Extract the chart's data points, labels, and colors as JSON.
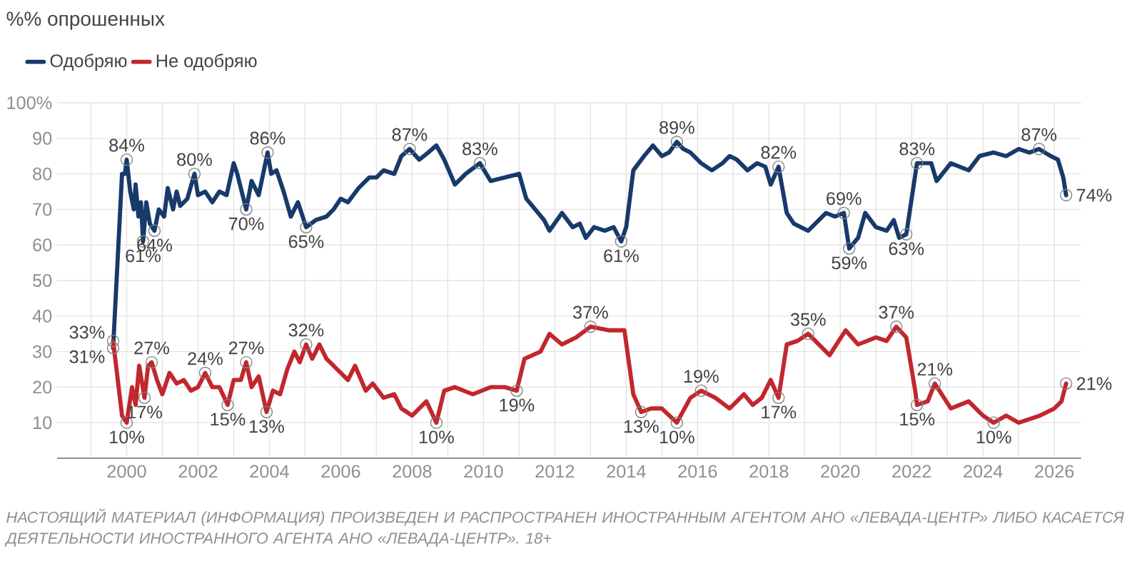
{
  "chart_data": {
    "type": "line",
    "ylabel": "%% опрошенных",
    "legend": "top left",
    "grid": true,
    "marker": "none",
    "line_style": "solid",
    "xlim": [
      1998.05,
      2026.75
    ],
    "ylim": [
      0,
      100
    ],
    "xticks": [
      {
        "value": 1999,
        "label": null
      },
      2000,
      {
        "value": 2001,
        "label": null
      },
      2002,
      {
        "value": 2003,
        "label": null
      },
      2004,
      {
        "value": 2005,
        "label": null
      },
      2006,
      {
        "value": 2007,
        "label": null
      },
      2008,
      {
        "value": 2009,
        "label": null
      },
      2010,
      {
        "value": 2011,
        "label": null
      },
      2012,
      {
        "value": 2013,
        "label": null
      },
      2014,
      {
        "value": 2015,
        "label": null
      },
      2016,
      {
        "value": 2017,
        "label": null
      },
      2018,
      {
        "value": 2019,
        "label": null
      },
      2020,
      {
        "value": 2021,
        "label": null
      },
      2022,
      {
        "value": 2023,
        "label": null
      },
      2024,
      {
        "value": 2025,
        "label": null
      },
      2026
    ],
    "yticks": [
      10,
      20,
      30,
      40,
      50,
      60,
      70,
      80,
      90,
      {
        "value": 100,
        "label": "100%"
      }
    ],
    "series": [
      {
        "name": "Одобряю",
        "color": "#173a6b",
        "x": [
          1999.62,
          1999.87,
          1999.95,
          2000.0,
          2000.1,
          2000.2,
          2000.25,
          2000.33,
          2000.4,
          2000.46,
          2000.55,
          2000.65,
          2000.78,
          2000.9,
          2001.05,
          2001.15,
          2001.3,
          2001.4,
          2001.5,
          2001.7,
          2001.9,
          2002.0,
          2002.2,
          2002.4,
          2002.6,
          2002.8,
          2003.0,
          2003.1,
          2003.2,
          2003.35,
          2003.5,
          2003.7,
          2003.95,
          2004.05,
          2004.2,
          2004.4,
          2004.6,
          2004.8,
          2005.03,
          2005.3,
          2005.6,
          2005.8,
          2006.0,
          2006.2,
          2006.5,
          2006.8,
          2007.0,
          2007.2,
          2007.5,
          2007.7,
          2007.93,
          2008.2,
          2008.45,
          2008.68,
          2008.9,
          2009.2,
          2009.5,
          2009.9,
          2010.2,
          2010.6,
          2011.0,
          2011.2,
          2011.45,
          2011.7,
          2011.85,
          2012.2,
          2012.5,
          2012.7,
          2012.87,
          2013.1,
          2013.4,
          2013.65,
          2013.86,
          2014.0,
          2014.2,
          2014.5,
          2014.75,
          2015.0,
          2015.2,
          2015.42,
          2015.6,
          2015.8,
          2016.1,
          2016.4,
          2016.7,
          2016.9,
          2017.1,
          2017.4,
          2017.67,
          2017.9,
          2018.05,
          2018.27,
          2018.5,
          2018.7,
          2019.1,
          2019.4,
          2019.6,
          2019.85,
          2020.1,
          2020.25,
          2020.5,
          2020.7,
          2021.0,
          2021.3,
          2021.5,
          2021.65,
          2021.85,
          2022.15,
          2022.55,
          2022.7,
          2023.1,
          2023.6,
          2023.9,
          2024.3,
          2024.65,
          2025.0,
          2025.3,
          2025.57,
          2025.9,
          2026.1,
          2026.25,
          2026.33
        ],
        "values": [
          31,
          80,
          80,
          84,
          75,
          70,
          77,
          68,
          72,
          61,
          72,
          66,
          64,
          70,
          68,
          76,
          70,
          75,
          71,
          73,
          80,
          74,
          75,
          72,
          75,
          74,
          83,
          80,
          76,
          70,
          78,
          74,
          86,
          80,
          81,
          75,
          68,
          72,
          65,
          67,
          68,
          70,
          73,
          72,
          76,
          79,
          79,
          81,
          80,
          85,
          87,
          84,
          86,
          88,
          84,
          77,
          80,
          83,
          78,
          79,
          80,
          73,
          70,
          67,
          64,
          69,
          65,
          66,
          62,
          65,
          64,
          65,
          61,
          65,
          81,
          85,
          88,
          85,
          86,
          89,
          87,
          86,
          83,
          81,
          83,
          85,
          84,
          81,
          83,
          82,
          77,
          82,
          69,
          66,
          64,
          67,
          69,
          68,
          69,
          59,
          62,
          69,
          65,
          64,
          67,
          62,
          63,
          83,
          83,
          78,
          83,
          81,
          85,
          86,
          85,
          87,
          86,
          87,
          85,
          84,
          79,
          74
        ]
      },
      {
        "name": "Не одобряю",
        "color": "#c1272d",
        "x": [
          1999.62,
          1999.87,
          2000.0,
          2000.15,
          2000.25,
          2000.35,
          2000.5,
          2000.6,
          2000.7,
          2000.85,
          2001.0,
          2001.2,
          2001.4,
          2001.6,
          2001.8,
          2002.0,
          2002.2,
          2002.4,
          2002.6,
          2002.83,
          2003.0,
          2003.2,
          2003.35,
          2003.5,
          2003.7,
          2003.92,
          2004.1,
          2004.3,
          2004.5,
          2004.7,
          2004.85,
          2005.03,
          2005.2,
          2005.4,
          2005.6,
          2005.9,
          2006.2,
          2006.4,
          2006.7,
          2006.9,
          2007.2,
          2007.5,
          2007.7,
          2008.0,
          2008.4,
          2008.68,
          2008.9,
          2009.2,
          2009.7,
          2010.2,
          2010.6,
          2010.93,
          2011.15,
          2011.6,
          2011.85,
          2012.2,
          2012.6,
          2013.0,
          2013.5,
          2013.95,
          2014.2,
          2014.42,
          2014.7,
          2015.0,
          2015.42,
          2015.8,
          2016.1,
          2016.5,
          2016.9,
          2017.3,
          2017.55,
          2017.8,
          2018.05,
          2018.27,
          2018.5,
          2018.8,
          2019.1,
          2019.4,
          2019.7,
          2020.15,
          2020.5,
          2021.0,
          2021.3,
          2021.57,
          2021.85,
          2022.1,
          2022.15,
          2022.45,
          2022.65,
          2023.1,
          2023.6,
          2024.0,
          2024.3,
          2024.65,
          2025.0,
          2025.6,
          2026.0,
          2026.2,
          2026.33
        ],
        "values": [
          33,
          12,
          10,
          20,
          15,
          26,
          17,
          26,
          27,
          22,
          18,
          24,
          21,
          22,
          19,
          20,
          24,
          20,
          20,
          15,
          22,
          22,
          27,
          20,
          23,
          13,
          19,
          18,
          25,
          30,
          27,
          32,
          28,
          32,
          28,
          25,
          22,
          26,
          19,
          21,
          17,
          18,
          14,
          12,
          16,
          10,
          19,
          20,
          18,
          20,
          20,
          19,
          28,
          30,
          35,
          32,
          34,
          37,
          36,
          36,
          18,
          13,
          14,
          14,
          10,
          17,
          19,
          17,
          14,
          18,
          15,
          17,
          22,
          17,
          32,
          33,
          35,
          32,
          29,
          36,
          32,
          34,
          33,
          37,
          34,
          19,
          15,
          16,
          21,
          14,
          16,
          12,
          10,
          12,
          10,
          12,
          14,
          16,
          21
        ]
      }
    ],
    "annotations": [
      {
        "text": "31%",
        "x": 1999.62,
        "y": 31
      },
      {
        "text": "33%",
        "x": 1999.62,
        "y": 33
      },
      {
        "text": "84%",
        "x": 2000.0,
        "y": 84
      },
      {
        "text": "61%",
        "x": 2000.46,
        "y": 61
      },
      {
        "text": "64%",
        "x": 2000.78,
        "y": 64
      },
      {
        "text": "80%",
        "x": 2001.9,
        "y": 80
      },
      {
        "text": "70%",
        "x": 2003.35,
        "y": 70
      },
      {
        "text": "86%",
        "x": 2003.95,
        "y": 86
      },
      {
        "text": "65%",
        "x": 2005.03,
        "y": 65
      },
      {
        "text": "87%",
        "x": 2007.93,
        "y": 87
      },
      {
        "text": "83%",
        "x": 2009.9,
        "y": 83
      },
      {
        "text": "61%",
        "x": 2013.86,
        "y": 61
      },
      {
        "text": "89%",
        "x": 2015.42,
        "y": 89
      },
      {
        "text": "82%",
        "x": 2018.27,
        "y": 82
      },
      {
        "text": "69%",
        "x": 2020.1,
        "y": 69
      },
      {
        "text": "59%",
        "x": 2020.25,
        "y": 59
      },
      {
        "text": "63%",
        "x": 2021.85,
        "y": 63
      },
      {
        "text": "83%",
        "x": 2022.15,
        "y": 83
      },
      {
        "text": "87%",
        "x": 2025.57,
        "y": 87
      },
      {
        "text": "74%",
        "x": 2026.33,
        "y": 74
      },
      {
        "text": "10%",
        "x": 2000.0,
        "y": 10
      },
      {
        "text": "17%",
        "x": 2000.5,
        "y": 17
      },
      {
        "text": "27%",
        "x": 2000.7,
        "y": 27
      },
      {
        "text": "24%",
        "x": 2002.2,
        "y": 24
      },
      {
        "text": "15%",
        "x": 2002.83,
        "y": 15
      },
      {
        "text": "27%",
        "x": 2003.35,
        "y": 27
      },
      {
        "text": "13%",
        "x": 2003.92,
        "y": 13
      },
      {
        "text": "32%",
        "x": 2005.03,
        "y": 32
      },
      {
        "text": "10%",
        "x": 2008.68,
        "y": 10
      },
      {
        "text": "19%",
        "x": 2010.93,
        "y": 19
      },
      {
        "text": "37%",
        "x": 2013.0,
        "y": 37
      },
      {
        "text": "13%",
        "x": 2014.42,
        "y": 13
      },
      {
        "text": "10%",
        "x": 2015.42,
        "y": 10
      },
      {
        "text": "19%",
        "x": 2016.1,
        "y": 19
      },
      {
        "text": "17%",
        "x": 2018.27,
        "y": 17
      },
      {
        "text": "35%",
        "x": 2019.1,
        "y": 35
      },
      {
        "text": "37%",
        "x": 2021.57,
        "y": 37
      },
      {
        "text": "15%",
        "x": 2022.15,
        "y": 15
      },
      {
        "text": "21%",
        "x": 2022.65,
        "y": 21
      },
      {
        "text": "10%",
        "x": 2024.3,
        "y": 10
      },
      {
        "text": "21%",
        "x": 2026.33,
        "y": 21
      },
      "НАСТОЯЩИЙ МАТЕРИАЛ (ИНФОРМАЦИЯ) ПРОИЗВЕДЕН И РАСПРОСТРАНЕН ИНОСТРАННЫМ АГЕНТОМ АНО «ЛЕВАДА-ЦЕНТР» ЛИБО КАСАЕТСЯ ДЕЯТЕЛЬНОСТИ ИНОСТРАННОГО АГЕНТА АНО «ЛЕВАДА-ЦЕНТР». 18+"
    ]
  }
}
